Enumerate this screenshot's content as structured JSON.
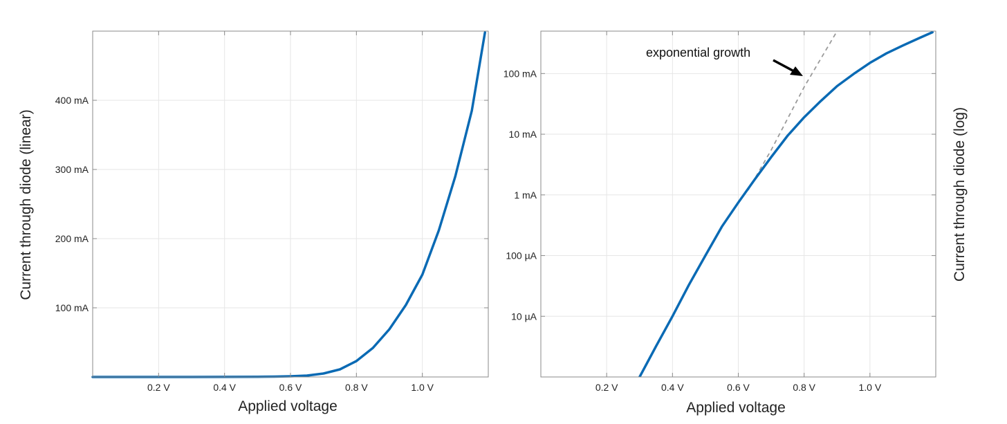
{
  "colors": {
    "curve": "#0a6ab4",
    "grid": "#e6e6e6",
    "frame": "#8a8a8a",
    "fit": "#9a9a9a"
  },
  "chart_data": [
    {
      "type": "line",
      "xlabel": "Applied voltage",
      "ylabel": "Current through diode (linear)",
      "xscale": "linear",
      "yscale": "linear",
      "xlim": [
        0.0,
        1.2
      ],
      "ylim": [
        0,
        500
      ],
      "x_ticks": [
        0.2,
        0.4,
        0.6,
        0.8,
        1.0
      ],
      "x_tick_labels": [
        "0.2 V",
        "0.4 V",
        "0.6 V",
        "0.8 V",
        "1.0 V"
      ],
      "y_ticks": [
        100,
        200,
        300,
        400
      ],
      "y_tick_labels": [
        "100 mA",
        "200 mA",
        "300 mA",
        "400 mA"
      ],
      "y_units": "mA",
      "grid": true,
      "series": [
        {
          "x": [
            0.0,
            0.1,
            0.2,
            0.3,
            0.4,
            0.5,
            0.55,
            0.6,
            0.65,
            0.7,
            0.75,
            0.8,
            0.85,
            0.9,
            0.95,
            1.0,
            1.05,
            1.1,
            1.15,
            1.19
          ],
          "y": [
            0,
            0,
            0,
            0,
            0.1,
            0.3,
            0.5,
            1,
            2,
            5,
            11,
            23,
            42,
            69,
            104,
            148,
            212,
            290,
            385,
            498
          ]
        }
      ]
    },
    {
      "type": "line",
      "xlabel": "Applied voltage",
      "ylabel": "Current through diode (log)",
      "xscale": "linear",
      "yscale": "log",
      "xlim": [
        0.0,
        1.2
      ],
      "ylim": [
        0.001,
        500
      ],
      "x_ticks": [
        0.2,
        0.4,
        0.6,
        0.8,
        1.0
      ],
      "x_tick_labels": [
        "0.2 V",
        "0.4 V",
        "0.6 V",
        "0.8 V",
        "1.0 V"
      ],
      "y_ticks": [
        0.01,
        0.1,
        1,
        10,
        100
      ],
      "y_tick_labels": [
        "10 µA",
        "100 µA",
        "1 mA",
        "10 mA",
        "100 mA"
      ],
      "y_units": "mA",
      "y_axis_side": "right-label",
      "grid": true,
      "series": [
        {
          "style": "solid",
          "x": [
            0.3,
            0.35,
            0.4,
            0.45,
            0.5,
            0.55,
            0.6,
            0.65,
            0.7,
            0.75,
            0.8,
            0.85,
            0.9,
            0.95,
            1.0,
            1.05,
            1.1,
            1.15,
            1.19
          ],
          "y": [
            0.001,
            0.0032,
            0.01,
            0.033,
            0.1,
            0.3,
            0.75,
            1.8,
            4.2,
            9.5,
            19,
            35,
            62,
            98,
            150,
            215,
            290,
            385,
            480
          ]
        },
        {
          "style": "dashed",
          "x": [
            0.63,
            0.7,
            0.8,
            0.9
          ],
          "y": [
            1.2,
            5.5,
            60,
            500
          ]
        }
      ],
      "annotations": [
        {
          "text": "exponential growth",
          "points_to": {
            "x": 0.81,
            "y": 110
          }
        }
      ]
    }
  ]
}
